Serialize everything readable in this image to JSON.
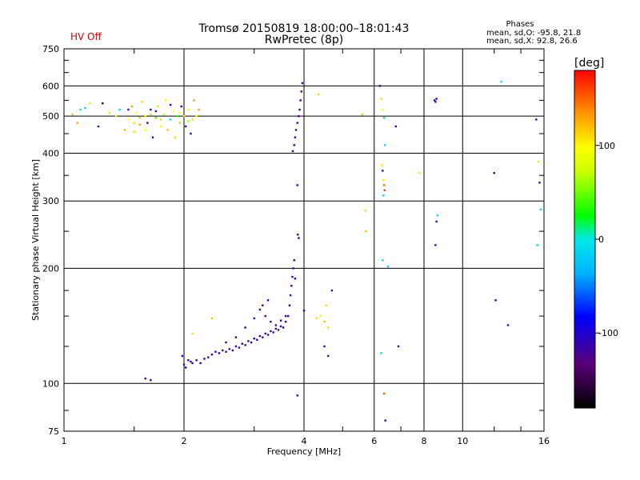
{
  "status_text": "HV Off",
  "colors": {
    "status": "#d00000",
    "grid": "#000000"
  },
  "chart_data": {
    "type": "scatter",
    "title": "Tromsø 20150819 18:00:00–18:01:43",
    "subtitle": "RwPretec (8p)",
    "xlabel": "Frequency [MHz]",
    "ylabel": "Stationary phase Virtual Height [km]",
    "x_scale": "log",
    "y_scale": "log",
    "xlim": [
      1,
      16
    ],
    "ylim": [
      75,
      750
    ],
    "x_ticks": [
      1,
      2,
      4,
      6,
      8,
      10,
      16
    ],
    "x_tick_labels": [
      "1",
      "2",
      "4",
      "6",
      "8",
      "10",
      "16"
    ],
    "y_ticks": [
      75,
      100,
      200,
      300,
      400,
      500,
      600,
      750
    ],
    "y_tick_labels": [
      "75",
      "100",
      "200",
      "300",
      "400",
      "500",
      "600",
      "750"
    ],
    "grid": true,
    "phases_box": {
      "title": "Phases",
      "line_o": "mean, sd,O: -95.8, 21.8",
      "line_x": "mean, sd,X:  92.8, 26.6"
    },
    "colorbar": {
      "label": "[deg]",
      "range": [
        -180,
        180
      ],
      "ticks": [
        100,
        0,
        -100
      ],
      "tick_labels": [
        "100",
        "0",
        "-100"
      ]
    },
    "points": [
      [
        1.05,
        505,
        120
      ],
      [
        1.08,
        480,
        130
      ],
      [
        1.1,
        520,
        -10
      ],
      [
        1.13,
        525,
        -15
      ],
      [
        1.16,
        540,
        70
      ],
      [
        1.22,
        470,
        -120
      ],
      [
        1.25,
        540,
        -160
      ],
      [
        1.3,
        510,
        110
      ],
      [
        1.35,
        500,
        100
      ],
      [
        1.38,
        520,
        -15
      ],
      [
        1.42,
        460,
        120
      ],
      [
        1.45,
        490,
        100
      ],
      [
        1.48,
        530,
        130
      ],
      [
        1.5,
        455,
        110
      ],
      [
        1.52,
        510,
        90
      ],
      [
        1.55,
        475,
        130
      ],
      [
        1.57,
        545,
        110
      ],
      [
        1.6,
        500,
        100
      ],
      [
        1.62,
        480,
        -110
      ],
      [
        1.65,
        520,
        -130
      ],
      [
        1.67,
        440,
        -120
      ],
      [
        1.7,
        495,
        40
      ],
      [
        1.72,
        530,
        110
      ],
      [
        1.75,
        470,
        90
      ],
      [
        1.78,
        505,
        70
      ],
      [
        1.8,
        550,
        100
      ],
      [
        1.82,
        460,
        120
      ],
      [
        1.85,
        490,
        -10
      ],
      [
        1.88,
        515,
        100
      ],
      [
        1.9,
        440,
        110
      ],
      [
        1.92,
        500,
        30
      ],
      [
        1.95,
        480,
        60
      ],
      [
        1.97,
        530,
        -110
      ],
      [
        2.0,
        500,
        110
      ],
      [
        2.02,
        470,
        -120
      ],
      [
        2.05,
        520,
        100
      ],
      [
        2.08,
        450,
        -110
      ],
      [
        2.1,
        490,
        110
      ],
      [
        2.12,
        550,
        130
      ],
      [
        2.15,
        500,
        100
      ],
      [
        2.18,
        520,
        130
      ],
      [
        1.55,
        495,
        120
      ],
      [
        1.6,
        460,
        100
      ],
      [
        1.65,
        505,
        70
      ],
      [
        1.7,
        515,
        -120
      ],
      [
        1.75,
        490,
        110
      ],
      [
        1.85,
        535,
        -110
      ],
      [
        1.95,
        510,
        100
      ],
      [
        2.05,
        485,
        60
      ],
      [
        1.45,
        520,
        -120
      ],
      [
        1.5,
        480,
        110
      ],
      [
        1.6,
        103,
        -120
      ],
      [
        1.65,
        102,
        -110
      ],
      [
        1.98,
        118,
        -110
      ],
      [
        2.0,
        112,
        -120
      ],
      [
        2.02,
        110,
        -100
      ],
      [
        2.05,
        115,
        -110
      ],
      [
        2.08,
        114,
        -120
      ],
      [
        2.1,
        113,
        -110
      ],
      [
        2.15,
        115,
        -110
      ],
      [
        2.2,
        113,
        -100
      ],
      [
        2.25,
        116,
        -110
      ],
      [
        2.3,
        117,
        -120
      ],
      [
        2.35,
        119,
        -110
      ],
      [
        2.4,
        121,
        -110
      ],
      [
        2.45,
        120,
        -100
      ],
      [
        2.5,
        122,
        -120
      ],
      [
        2.55,
        121,
        -110
      ],
      [
        2.6,
        123,
        -120
      ],
      [
        2.65,
        122,
        -110
      ],
      [
        2.7,
        125,
        -110
      ],
      [
        2.75,
        124,
        -120
      ],
      [
        2.8,
        127,
        -110
      ],
      [
        2.85,
        126,
        -100
      ],
      [
        2.9,
        129,
        -110
      ],
      [
        2.95,
        128,
        -120
      ],
      [
        3.0,
        131,
        -110
      ],
      [
        3.05,
        130,
        -100
      ],
      [
        3.1,
        133,
        -110
      ],
      [
        3.15,
        132,
        -120
      ],
      [
        3.2,
        135,
        -110
      ],
      [
        3.25,
        134,
        -110
      ],
      [
        3.3,
        137,
        -120
      ],
      [
        3.35,
        136,
        -110
      ],
      [
        3.4,
        139,
        -110
      ],
      [
        3.45,
        138,
        -120
      ],
      [
        3.5,
        141,
        -100
      ],
      [
        3.55,
        140,
        -110
      ],
      [
        3.6,
        145,
        -110
      ],
      [
        3.65,
        150,
        -120
      ],
      [
        3.68,
        160,
        -110
      ],
      [
        3.7,
        170,
        -110
      ],
      [
        3.72,
        180,
        -120
      ],
      [
        3.74,
        190,
        -110
      ],
      [
        3.76,
        200,
        -110
      ],
      [
        3.78,
        210,
        -120
      ],
      [
        3.8,
        188,
        -110
      ],
      [
        2.55,
        128,
        -120
      ],
      [
        2.7,
        132,
        -150
      ],
      [
        2.85,
        140,
        -110
      ],
      [
        3.0,
        148,
        -120
      ],
      [
        3.1,
        156,
        -110
      ],
      [
        3.2,
        150,
        -130
      ],
      [
        3.3,
        145,
        -120
      ],
      [
        3.4,
        142,
        -110
      ],
      [
        3.5,
        146,
        -150
      ],
      [
        3.6,
        150,
        -110
      ],
      [
        3.15,
        160,
        -120
      ],
      [
        3.25,
        165,
        -110
      ],
      [
        2.1,
        135,
        110
      ],
      [
        2.35,
        148,
        120
      ],
      [
        3.75,
        405,
        -110
      ],
      [
        3.78,
        420,
        -120
      ],
      [
        3.8,
        440,
        -110
      ],
      [
        3.82,
        460,
        -120
      ],
      [
        3.85,
        480,
        -110
      ],
      [
        3.88,
        500,
        -120
      ],
      [
        3.9,
        520,
        -110
      ],
      [
        3.92,
        550,
        -110
      ],
      [
        3.94,
        580,
        -120
      ],
      [
        3.96,
        610,
        -110
      ],
      [
        3.85,
        330,
        -120
      ],
      [
        3.86,
        245,
        -120
      ],
      [
        3.88,
        240,
        -110
      ],
      [
        3.85,
        93,
        -120
      ],
      [
        4.0,
        155,
        -110
      ],
      [
        4.3,
        148,
        110
      ],
      [
        4.4,
        150,
        100
      ],
      [
        4.5,
        145,
        120
      ],
      [
        4.55,
        160,
        110
      ],
      [
        4.6,
        140,
        110
      ],
      [
        4.7,
        175,
        -120
      ],
      [
        4.5,
        125,
        -110
      ],
      [
        4.6,
        118,
        -120
      ],
      [
        4.35,
        570,
        110
      ],
      [
        5.6,
        505,
        60
      ],
      [
        5.7,
        283,
        110
      ],
      [
        5.72,
        250,
        120
      ],
      [
        6.2,
        600,
        -110
      ],
      [
        6.25,
        555,
        110
      ],
      [
        6.3,
        520,
        100
      ],
      [
        6.35,
        495,
        -10
      ],
      [
        6.28,
        372,
        110
      ],
      [
        6.3,
        360,
        -120
      ],
      [
        6.33,
        340,
        100
      ],
      [
        6.35,
        330,
        150
      ],
      [
        6.37,
        320,
        160
      ],
      [
        6.33,
        310,
        -15
      ],
      [
        6.38,
        420,
        -10
      ],
      [
        6.3,
        210,
        -10
      ],
      [
        6.25,
        120,
        -10
      ],
      [
        6.35,
        94,
        150
      ],
      [
        6.4,
        80,
        -120
      ],
      [
        6.5,
        202,
        -10
      ],
      [
        6.8,
        470,
        -120
      ],
      [
        6.9,
        125,
        -120
      ],
      [
        7.8,
        355,
        110
      ],
      [
        8.5,
        550,
        -120
      ],
      [
        8.55,
        545,
        -130
      ],
      [
        8.6,
        555,
        -120
      ],
      [
        8.65,
        275,
        -10
      ],
      [
        8.6,
        265,
        -120
      ],
      [
        8.55,
        230,
        -120
      ],
      [
        12.0,
        355,
        -120
      ],
      [
        12.1,
        165,
        -120
      ],
      [
        12.5,
        615,
        -10
      ],
      [
        13.0,
        142,
        -120
      ],
      [
        15.3,
        490,
        -120
      ],
      [
        15.4,
        230,
        -10
      ],
      [
        15.5,
        380,
        110
      ],
      [
        15.6,
        335,
        -120
      ],
      [
        15.7,
        285,
        -10
      ]
    ]
  }
}
